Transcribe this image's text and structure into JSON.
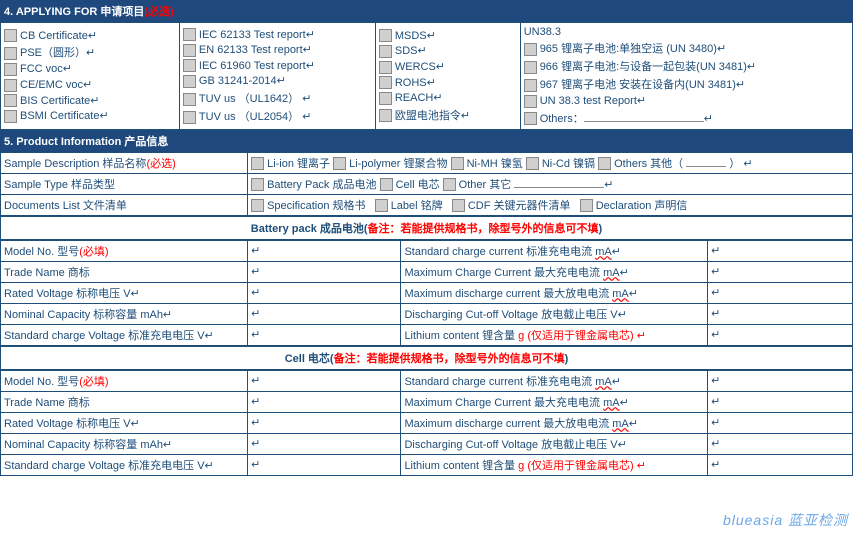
{
  "sec4": {
    "title_en": "4. APPLYING  FOR",
    "title_cn": "申请项目",
    "req": "(必选)"
  },
  "col1": [
    "CB Certificate↵",
    "PSE（圆形）↵",
    "FCC voc↵",
    "CE/EMC voc↵",
    "BIS Certificate↵",
    "BSMI Certificate↵"
  ],
  "col2": [
    "IEC 62133 Test report↵",
    "EN 62133 Test report↵",
    "IEC 61960 Test report↵",
    "GB 31241-2014↵",
    "TUV us （UL1642） ↵",
    "TUV us （UL2054） ↵"
  ],
  "col3": [
    "MSDS↵",
    "SDS↵",
    "WERCS↵",
    "ROHS↵",
    "REACH↵",
    "欧盟电池指令↵"
  ],
  "col4": [
    "UN38.3",
    "965 锂离子电池:单独空运 (UN 3480)↵",
    "966 锂离子电池:与设备一起包装(UN 3481)↵",
    "967 锂离子电池 安装在设备内(UN 3481)↵",
    "UN 38.3 test Report↵",
    "Others："
  ],
  "sec5": {
    "title": "5. Product  Information 产品信息"
  },
  "r1": {
    "label": "Sample Description 样品名称",
    "req": "(必选)",
    "opts": [
      "Li-ion 锂离子",
      "Li-polymer 锂聚合物",
      "Ni-MH 镍氢",
      "Ni-Cd 镍镉",
      "Others 其他（"
    ]
  },
  "r2": {
    "label": "Sample Type 样品类型",
    "opts": [
      "Battery Pack 成品电池",
      "Cell 电芯",
      "Other 其它"
    ]
  },
  "r3": {
    "label": "Documents List 文件清单",
    "opts": [
      "Specification 规格书",
      "Label 铭牌",
      "CDF 关键元器件清单",
      "Declaration 声明信"
    ]
  },
  "bp": {
    "title": "Battery pack 成品电池(",
    "note": "备注：若能提供规格书，除型号外的信息可不填",
    ")": " )"
  },
  "cell": {
    "title": "Cell 电芯(",
    "note": "备注：若能提供规格书，除型号外的信息可不填",
    ")": " )"
  },
  "L": [
    {
      "t": "Model No. 型号",
      "req": "(必填)"
    },
    {
      "t": "Trade Name 商标"
    },
    {
      "t": "Rated Voltage 标称电压",
      "u": " V↵"
    },
    {
      "t": "Nominal Capacity 标称容量",
      "u": " mAh↵"
    },
    {
      "t": "Standard charge Voltage 标准充电电压",
      "u": " V↵"
    }
  ],
  "R": [
    {
      "t": "Standard charge current  标准充电电流",
      "u": " mA↵",
      "wavy": 1
    },
    {
      "t": "Maximum Charge Current 最大充电电流",
      "u": " mA↵",
      "wavy": 1
    },
    {
      "t": "Maximum discharge current 最大放电电流",
      "u": " mA↵",
      "wavy": 1
    },
    {
      "t": "Discharging Cut-off Voltage 放电截止电压",
      "u": " V↵"
    },
    {
      "t": "Lithium content 锂含量",
      "u": " g (仅适用于锂金属电芯) ↵",
      "red": 1
    }
  ],
  "wm": "blueasia 蓝亚检测"
}
